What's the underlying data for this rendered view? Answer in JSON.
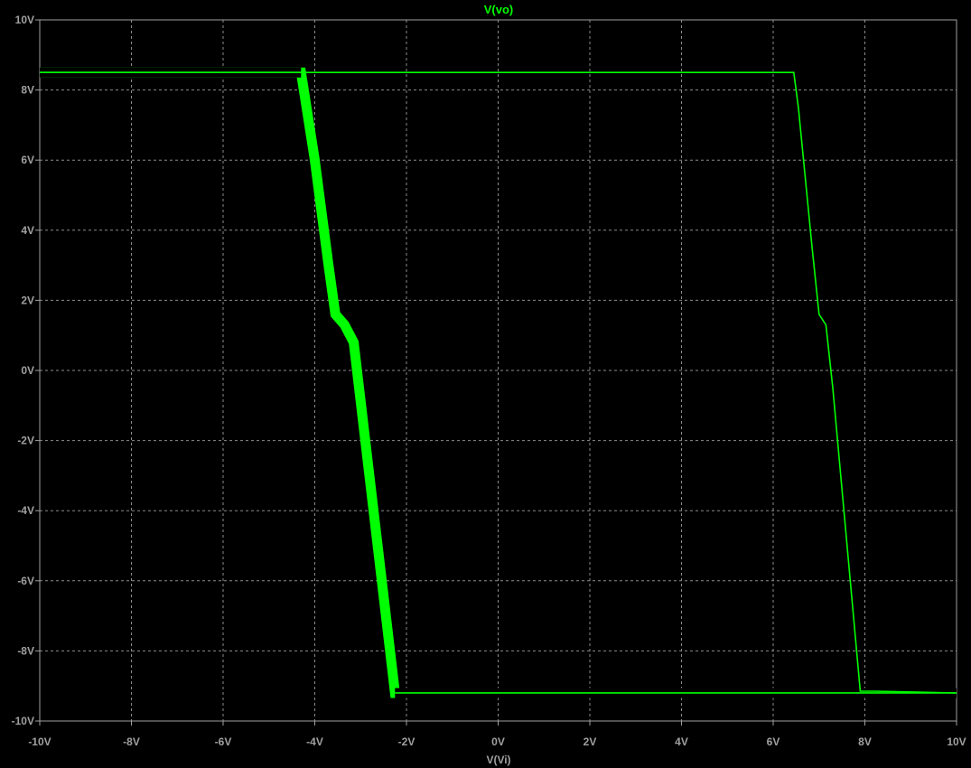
{
  "chart_data": {
    "type": "line",
    "title": "V(vo)",
    "xlabel": "V(Vi)",
    "ylabel": "",
    "xlim": [
      -10,
      10
    ],
    "ylim": [
      -10,
      10
    ],
    "grid": true,
    "x_ticks": [
      "-10V",
      "-8V",
      "-6V",
      "-4V",
      "-2V",
      "0V",
      "2V",
      "4V",
      "6V",
      "8V",
      "10V"
    ],
    "y_ticks": [
      "10V",
      "8V",
      "6V",
      "4V",
      "2V",
      "0V",
      "-2V",
      "-4V",
      "-6V",
      "-8V",
      "-10V"
    ],
    "colors": {
      "background": "#000000",
      "axis": "#a0a0a0",
      "grid": "#8c8c8c",
      "trace": "#00ff00",
      "text": "#a0a0a0",
      "title": "#00ff00"
    },
    "series": [
      {
        "x": [
          -10,
          -4.3,
          -4.0,
          -3.7,
          -3.55,
          -3.35,
          -3.15,
          -2.25,
          -2.1,
          10
        ],
        "y": [
          8.5,
          8.5,
          6.0,
          3.0,
          1.6,
          1.3,
          0.8,
          -9.2,
          -9.2,
          -9.2
        ],
        "width": "thick"
      },
      {
        "x": [
          -10,
          6.45,
          6.55,
          6.85,
          7.0,
          7.15,
          7.3,
          7.9,
          8.2,
          10
        ],
        "y": [
          8.5,
          8.5,
          7.5,
          3.5,
          1.6,
          1.3,
          -0.5,
          -9.15,
          -9.15,
          -9.2
        ],
        "width": "thin"
      }
    ]
  }
}
